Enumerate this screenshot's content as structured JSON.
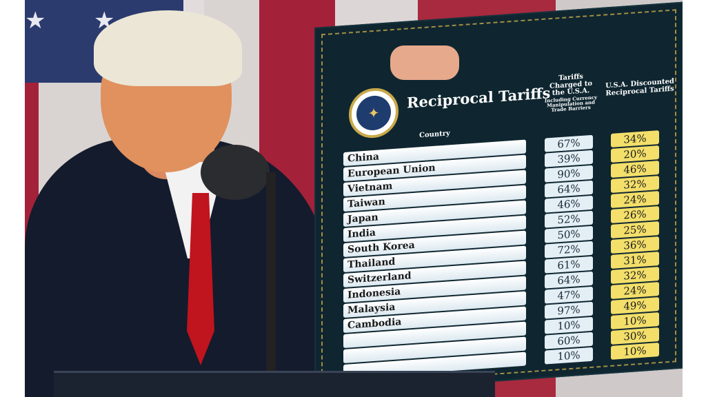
{
  "board": {
    "title": "Reciprocal Tariffs",
    "column_country": "Country",
    "column_charged": "Tariffs Charged to the U.S.A.",
    "column_charged_note": "Including Currency Manipulation and Trade Barriers",
    "column_discounted": "U.S.A. Discounted Reciprocal Tariffs",
    "rows": [
      {
        "country": "China",
        "charged": "67%",
        "discounted": "34%"
      },
      {
        "country": "European Union",
        "charged": "39%",
        "discounted": "20%"
      },
      {
        "country": "Vietnam",
        "charged": "90%",
        "discounted": "46%"
      },
      {
        "country": "Taiwan",
        "charged": "64%",
        "discounted": "32%"
      },
      {
        "country": "Japan",
        "charged": "46%",
        "discounted": "24%"
      },
      {
        "country": "India",
        "charged": "52%",
        "discounted": "26%"
      },
      {
        "country": "South Korea",
        "charged": "50%",
        "discounted": "25%"
      },
      {
        "country": "Thailand",
        "charged": "72%",
        "discounted": "36%"
      },
      {
        "country": "Switzerland",
        "charged": "61%",
        "discounted": "31%"
      },
      {
        "country": "Indonesia",
        "charged": "64%",
        "discounted": "32%"
      },
      {
        "country": "Malaysia",
        "charged": "47%",
        "discounted": "24%"
      },
      {
        "country": "Cambodia",
        "charged": "97%",
        "discounted": "49%"
      },
      {
        "country": "",
        "charged": "10%",
        "discounted": "10%"
      },
      {
        "country": "",
        "charged": "60%",
        "discounted": "30%"
      },
      {
        "country": "",
        "charged": "10%",
        "discounted": "10%"
      }
    ]
  },
  "colors": {
    "board": "#0f2630",
    "charged_cell": "#e4eff5",
    "discount_cell": "#f3df6a",
    "flag_red": "#a4213a",
    "flag_blue": "#2b3b6e"
  },
  "icons": {
    "seal": "presidential-seal-icon"
  }
}
